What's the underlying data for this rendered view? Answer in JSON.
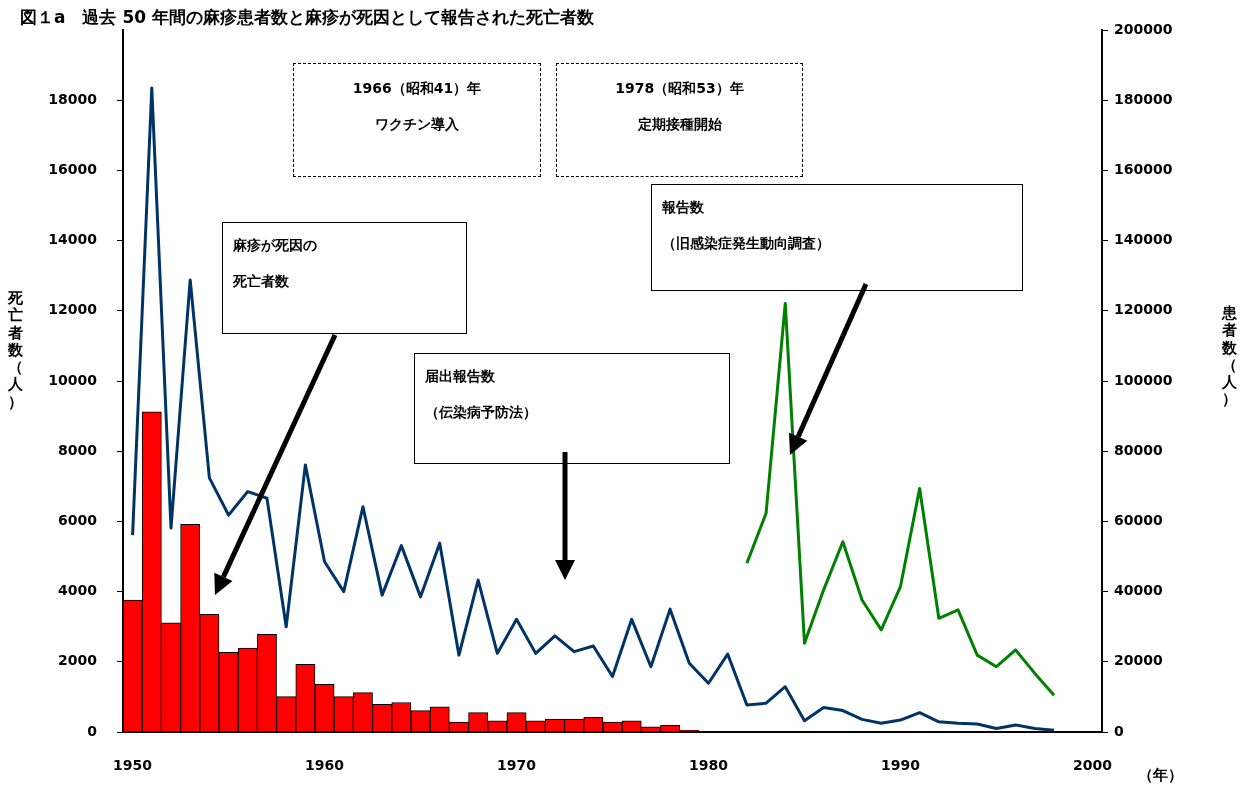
{
  "chart_data": {
    "type": "bar",
    "title": "図１a　過去 50 年間の麻疹患者数と麻疹が死因として報告された死亡者数",
    "xlabel": "（年）",
    "ylabel": "死亡者数（人）",
    "y2label": "患者数（人）",
    "categories": [
      "1950",
      null,
      null,
      null,
      null,
      null,
      null,
      null,
      null,
      null,
      "1960",
      null,
      null,
      null,
      null,
      null,
      null,
      null,
      null,
      null,
      "1970",
      null,
      null,
      null,
      null,
      null,
      null,
      null,
      null,
      null,
      "1980",
      null,
      null,
      null,
      null,
      null,
      null,
      null,
      null,
      null,
      "1990",
      null,
      null,
      null,
      null,
      null,
      null,
      null,
      null,
      null,
      "2000"
    ],
    "series": [
      {
        "name": "麻疹が死因の死亡者数",
        "color": "#ff0000",
        "values": [
          3760,
          9120,
          3110,
          5920,
          3350,
          2270,
          2390,
          2780,
          1010,
          1930,
          1360,
          1010,
          1120,
          790,
          840,
          610,
          720,
          280,
          550,
          320,
          550,
          320,
          370,
          370,
          420,
          280,
          320,
          150,
          200,
          50,
          0,
          0,
          0,
          0,
          0,
          0,
          0,
          0,
          0,
          0,
          0,
          0,
          0,
          0,
          0,
          0,
          0,
          0,
          0,
          null,
          null
        ]
      },
      {
        "name": "届出報告数（伝染病予防法）",
        "type": "line",
        "axis": "y2",
        "color": "#003366",
        "values": [
          56100,
          183500,
          58100,
          128800,
          72400,
          61800,
          68500,
          66600,
          30000,
          76100,
          48500,
          40000,
          64200,
          39000,
          53100,
          38500,
          53800,
          21900,
          43300,
          22400,
          32100,
          22400,
          27400,
          22900,
          24500,
          15800,
          32100,
          18600,
          35000,
          19600,
          13900,
          22200,
          7700,
          8200,
          12900,
          3200,
          7000,
          6100,
          3600,
          2500,
          3400,
          5500,
          2900,
          2500,
          2300,
          1000,
          2000,
          1000,
          500,
          null,
          null
        ]
      },
      {
        "name": "報告数（旧感染症発生動向調査）",
        "type": "line",
        "axis": "y2",
        "color": "#008000",
        "values": [
          null,
          null,
          null,
          null,
          null,
          null,
          null,
          null,
          null,
          null,
          null,
          null,
          null,
          null,
          null,
          null,
          null,
          null,
          null,
          null,
          null,
          null,
          null,
          null,
          null,
          null,
          null,
          null,
          null,
          null,
          null,
          null,
          48100,
          62300,
          122100,
          25300,
          40500,
          54200,
          37600,
          29100,
          41400,
          69400,
          32400,
          34800,
          21900,
          18600,
          23400,
          16700,
          10500,
          null,
          null
        ]
      }
    ],
    "ylim": [
      0,
      20000
    ],
    "yticks": [
      0,
      2000,
      4000,
      6000,
      8000,
      10000,
      12000,
      14000,
      16000,
      18000
    ],
    "y2lim": [
      0,
      200000
    ],
    "y2ticks": [
      0,
      20000,
      40000,
      60000,
      80000,
      100000,
      120000,
      140000,
      160000,
      180000,
      200000
    ],
    "annotations": [
      "1966（昭和41）年ワクチン導入",
      "1978（昭和53）年定期接種開始"
    ],
    "legend": false
  }
}
